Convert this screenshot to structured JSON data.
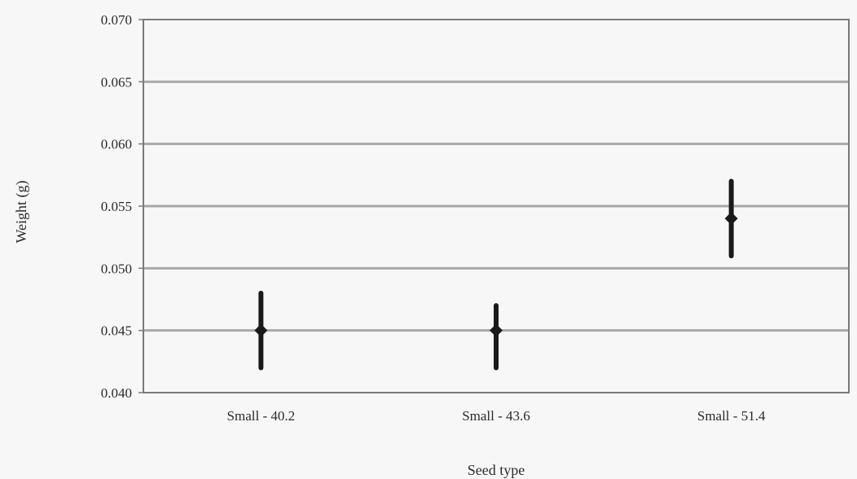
{
  "chart_data": {
    "type": "scatter",
    "title": "",
    "xlabel": "Seed type",
    "ylabel": "Weight (g)",
    "categories": [
      "Small - 40.2",
      "Small - 43.6",
      "Small - 51.4"
    ],
    "values": [
      0.045,
      0.045,
      0.054
    ],
    "error_low": [
      0.042,
      0.042,
      0.051
    ],
    "error_high": [
      0.048,
      0.047,
      0.057
    ],
    "ylim": [
      0.04,
      0.07
    ],
    "yticks": [
      "0.040",
      "0.045",
      "0.050",
      "0.055",
      "0.060",
      "0.065",
      "0.070"
    ],
    "grid": true,
    "legend": "none",
    "colors": {
      "background": "#f7f7f7",
      "gridline": "#a9a9a9",
      "frame": "#7a7a7a",
      "marker": "#1a1a1a"
    }
  }
}
